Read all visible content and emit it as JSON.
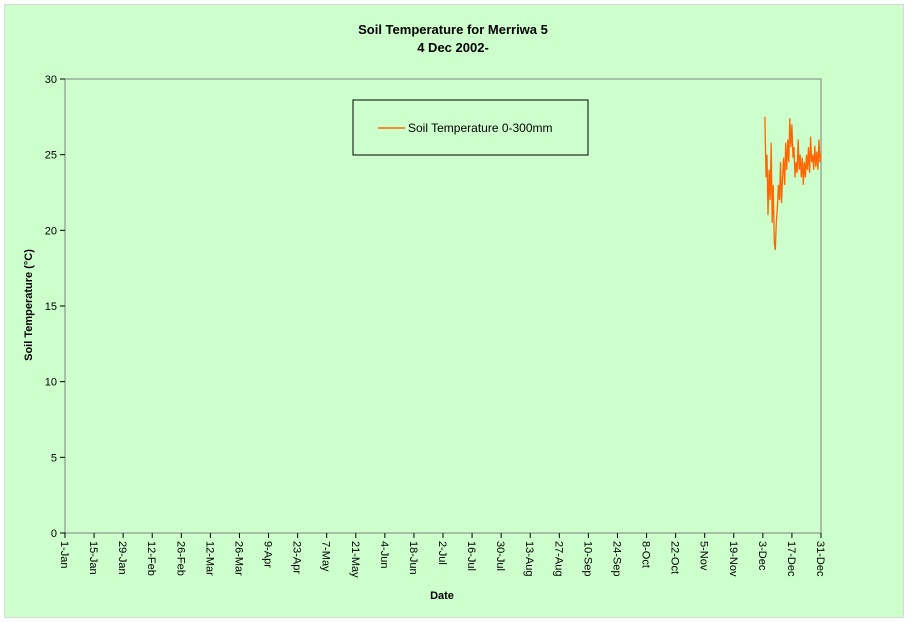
{
  "chart_data": {
    "type": "line",
    "title": "Soil Temperature for Merriwa 5",
    "subtitle": "4 Dec 2002-",
    "xlabel": "Date",
    "ylabel": "Soil Temperature (°C)",
    "ylim": [
      0,
      30
    ],
    "yticks": [
      0,
      5,
      10,
      15,
      20,
      25,
      30
    ],
    "xlim_day_of_year": [
      1,
      365
    ],
    "xticks": [
      {
        "label": "1-Jan",
        "day": 1
      },
      {
        "label": "15-Jan",
        "day": 15
      },
      {
        "label": "29-Jan",
        "day": 29
      },
      {
        "label": "12-Feb",
        "day": 43
      },
      {
        "label": "26-Feb",
        "day": 57
      },
      {
        "label": "12-Mar",
        "day": 71
      },
      {
        "label": "26-Mar",
        "day": 85
      },
      {
        "label": "9-Apr",
        "day": 99
      },
      {
        "label": "23-Apr",
        "day": 113
      },
      {
        "label": "7-May",
        "day": 127
      },
      {
        "label": "21-May",
        "day": 141
      },
      {
        "label": "4-Jun",
        "day": 155
      },
      {
        "label": "18-Jun",
        "day": 169
      },
      {
        "label": "2-Jul",
        "day": 183
      },
      {
        "label": "16-Jul",
        "day": 197
      },
      {
        "label": "30-Jul",
        "day": 211
      },
      {
        "label": "13-Aug",
        "day": 225
      },
      {
        "label": "27-Aug",
        "day": 239
      },
      {
        "label": "10-Sep",
        "day": 253
      },
      {
        "label": "24-Sep",
        "day": 267
      },
      {
        "label": "8-Oct",
        "day": 281
      },
      {
        "label": "22-Oct",
        "day": 295
      },
      {
        "label": "5-Nov",
        "day": 309
      },
      {
        "label": "19-Nov",
        "day": 323
      },
      {
        "label": "3-Dec",
        "day": 337
      },
      {
        "label": "17-Dec",
        "day": 351
      },
      {
        "label": "31-Dec",
        "day": 365
      }
    ],
    "grid": false,
    "legend_position": "top-center",
    "series": [
      {
        "name": "Soil Temperature  0-300mm",
        "color": "#ff6600",
        "x_day_of_year": [
          338,
          338.5,
          339,
          339.5,
          340,
          340.5,
          341,
          341.5,
          342,
          342.5,
          343,
          343.5,
          344,
          344.5,
          345,
          345.5,
          346,
          346.5,
          347,
          347.5,
          348,
          348.5,
          349,
          349.5,
          350,
          350.5,
          351,
          351.5,
          352,
          352.5,
          353,
          353.5,
          354,
          354.5,
          355,
          355.5,
          356,
          356.5,
          357,
          357.5,
          358,
          358.5,
          359,
          359.5,
          360,
          360.5,
          361,
          361.5,
          362,
          362.5,
          363,
          363.5,
          364,
          364.5,
          365
        ],
        "y": [
          27.5,
          23.5,
          25.0,
          21.0,
          24.0,
          22.0,
          25.8,
          20.5,
          23.0,
          19.2,
          18.7,
          20.5,
          21.5,
          23.0,
          22.0,
          24.5,
          21.8,
          23.5,
          24.8,
          23.0,
          25.8,
          24.0,
          26.0,
          24.5,
          27.4,
          25.5,
          27.0,
          24.8,
          25.5,
          23.5,
          24.5,
          23.8,
          26.0,
          24.0,
          25.0,
          23.5,
          24.8,
          23.0,
          24.5,
          23.5,
          25.0,
          24.0,
          25.5,
          23.8,
          26.2,
          24.5,
          25.0,
          24.0,
          25.6,
          24.2,
          25.2,
          24.0,
          26.0,
          24.5,
          25.0
        ]
      }
    ]
  }
}
